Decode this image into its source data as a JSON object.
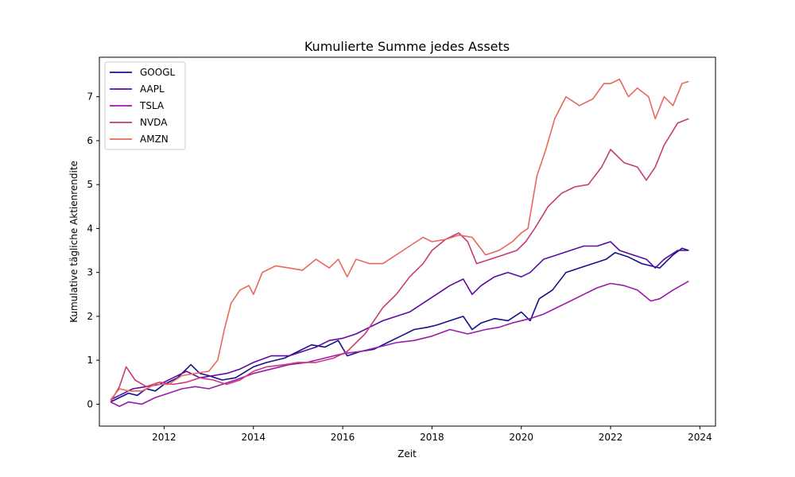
{
  "chart_data": {
    "type": "line",
    "title": "Kumulierte Summe jedes Assets",
    "xlabel": "Zeit",
    "ylabel": "Kumulative tägliche Aktienrendite",
    "xlim": [
      2010.55,
      2024.35
    ],
    "ylim": [
      -0.5,
      7.9
    ],
    "x_ticks": [
      2012,
      2014,
      2016,
      2018,
      2020,
      2022,
      2024
    ],
    "y_ticks": [
      0,
      1,
      2,
      3,
      4,
      5,
      6,
      7
    ],
    "grid": false,
    "legend_position": "upper-left",
    "series": [
      {
        "name": "GOOGL",
        "color": "#16108a",
        "x": [
          2010.8,
          2011.0,
          2011.2,
          2011.4,
          2011.6,
          2011.8,
          2012.0,
          2012.3,
          2012.6,
          2012.8,
          2013.0,
          2013.3,
          2013.6,
          2014.0,
          2014.3,
          2014.7,
          2015.0,
          2015.3,
          2015.6,
          2015.9,
          2016.1,
          2016.4,
          2016.7,
          2017.0,
          2017.3,
          2017.6,
          2017.9,
          2018.1,
          2018.4,
          2018.7,
          2018.9,
          2019.1,
          2019.4,
          2019.7,
          2020.0,
          2020.2,
          2020.4,
          2020.7,
          2021.0,
          2021.3,
          2021.6,
          2021.9,
          2022.1,
          2022.4,
          2022.7,
          2022.9,
          2023.1,
          2023.4,
          2023.6,
          2023.75
        ],
        "values": [
          0.05,
          0.15,
          0.25,
          0.2,
          0.35,
          0.3,
          0.45,
          0.6,
          0.9,
          0.7,
          0.65,
          0.55,
          0.6,
          0.85,
          0.95,
          1.05,
          1.2,
          1.35,
          1.3,
          1.45,
          1.1,
          1.2,
          1.25,
          1.4,
          1.55,
          1.7,
          1.75,
          1.8,
          1.9,
          2.0,
          1.7,
          1.85,
          1.95,
          1.9,
          2.1,
          1.9,
          2.4,
          2.6,
          3.0,
          3.1,
          3.2,
          3.3,
          3.45,
          3.35,
          3.2,
          3.15,
          3.1,
          3.4,
          3.55,
          3.5
        ]
      },
      {
        "name": "AAPL",
        "color": "#5c0aa3",
        "x": [
          2010.8,
          2011.0,
          2011.3,
          2011.6,
          2011.9,
          2012.2,
          2012.5,
          2012.8,
          2013.1,
          2013.4,
          2013.7,
          2014.0,
          2014.4,
          2014.8,
          2015.1,
          2015.4,
          2015.7,
          2016.0,
          2016.3,
          2016.6,
          2016.9,
          2017.2,
          2017.5,
          2017.8,
          2018.1,
          2018.4,
          2018.7,
          2018.9,
          2019.1,
          2019.4,
          2019.7,
          2020.0,
          2020.2,
          2020.5,
          2020.8,
          2021.1,
          2021.4,
          2021.7,
          2022.0,
          2022.2,
          2022.5,
          2022.8,
          2023.0,
          2023.2,
          2023.5,
          2023.75
        ],
        "values": [
          0.1,
          0.2,
          0.35,
          0.4,
          0.45,
          0.6,
          0.75,
          0.6,
          0.65,
          0.7,
          0.8,
          0.95,
          1.1,
          1.1,
          1.2,
          1.3,
          1.45,
          1.5,
          1.6,
          1.75,
          1.9,
          2.0,
          2.1,
          2.3,
          2.5,
          2.7,
          2.85,
          2.5,
          2.7,
          2.9,
          3.0,
          2.9,
          3.0,
          3.3,
          3.4,
          3.5,
          3.6,
          3.6,
          3.7,
          3.5,
          3.4,
          3.3,
          3.1,
          3.3,
          3.5,
          3.5
        ]
      },
      {
        "name": "TSLA",
        "color": "#9c1aab",
        "x": [
          2010.8,
          2011.0,
          2011.2,
          2011.5,
          2011.8,
          2012.1,
          2012.4,
          2012.7,
          2013.0,
          2013.3,
          2013.6,
          2014.0,
          2014.4,
          2014.8,
          2015.2,
          2015.6,
          2016.0,
          2016.4,
          2016.8,
          2017.2,
          2017.6,
          2018.0,
          2018.4,
          2018.8,
          2019.2,
          2019.5,
          2019.8,
          2020.2,
          2020.5,
          2020.8,
          2021.1,
          2021.4,
          2021.7,
          2022.0,
          2022.3,
          2022.6,
          2022.9,
          2023.1,
          2023.4,
          2023.75
        ],
        "values": [
          0.05,
          -0.05,
          0.05,
          0.0,
          0.15,
          0.25,
          0.35,
          0.4,
          0.35,
          0.45,
          0.55,
          0.7,
          0.8,
          0.9,
          0.95,
          1.05,
          1.15,
          1.2,
          1.3,
          1.4,
          1.45,
          1.55,
          1.7,
          1.6,
          1.7,
          1.75,
          1.85,
          1.95,
          2.05,
          2.2,
          2.35,
          2.5,
          2.65,
          2.75,
          2.7,
          2.6,
          2.35,
          2.4,
          2.6,
          2.8
        ]
      },
      {
        "name": "NVDA",
        "color": "#c83a7b",
        "x": [
          2010.8,
          2011.0,
          2011.15,
          2011.35,
          2011.6,
          2011.9,
          2012.2,
          2012.5,
          2012.8,
          2013.1,
          2013.4,
          2013.7,
          2014.0,
          2014.3,
          2014.7,
          2015.0,
          2015.4,
          2015.8,
          2016.1,
          2016.5,
          2016.9,
          2017.2,
          2017.5,
          2017.8,
          2018.0,
          2018.3,
          2018.6,
          2018.8,
          2019.0,
          2019.3,
          2019.6,
          2019.9,
          2020.1,
          2020.3,
          2020.6,
          2020.9,
          2021.2,
          2021.5,
          2021.8,
          2022.0,
          2022.3,
          2022.6,
          2022.8,
          2023.0,
          2023.2,
          2023.5,
          2023.75
        ],
        "values": [
          0.05,
          0.4,
          0.85,
          0.55,
          0.4,
          0.5,
          0.45,
          0.5,
          0.6,
          0.55,
          0.45,
          0.55,
          0.75,
          0.85,
          0.9,
          0.95,
          0.95,
          1.05,
          1.2,
          1.6,
          2.2,
          2.5,
          2.9,
          3.2,
          3.5,
          3.75,
          3.9,
          3.7,
          3.2,
          3.3,
          3.4,
          3.5,
          3.7,
          4.0,
          4.5,
          4.8,
          4.95,
          5.0,
          5.4,
          5.8,
          5.5,
          5.4,
          5.1,
          5.4,
          5.9,
          6.4,
          6.5
        ]
      },
      {
        "name": "AMZN",
        "color": "#e8685b",
        "x": [
          2010.8,
          2011.0,
          2011.2,
          2011.5,
          2011.8,
          2012.1,
          2012.4,
          2012.7,
          2013.0,
          2013.2,
          2013.35,
          2013.5,
          2013.7,
          2013.9,
          2014.0,
          2014.2,
          2014.5,
          2014.8,
          2015.1,
          2015.4,
          2015.7,
          2015.9,
          2016.1,
          2016.3,
          2016.6,
          2016.9,
          2017.2,
          2017.5,
          2017.8,
          2018.0,
          2018.3,
          2018.6,
          2018.9,
          2019.2,
          2019.5,
          2019.8,
          2020.0,
          2020.15,
          2020.35,
          2020.55,
          2020.75,
          2021.0,
          2021.3,
          2021.6,
          2021.85,
          2022.0,
          2022.2,
          2022.4,
          2022.6,
          2022.85,
          2023.0,
          2023.2,
          2023.4,
          2023.6,
          2023.75
        ],
        "values": [
          0.1,
          0.35,
          0.3,
          0.3,
          0.45,
          0.45,
          0.65,
          0.7,
          0.75,
          1.0,
          1.7,
          2.3,
          2.6,
          2.7,
          2.5,
          3.0,
          3.15,
          3.1,
          3.05,
          3.3,
          3.1,
          3.3,
          2.9,
          3.3,
          3.2,
          3.2,
          3.4,
          3.6,
          3.8,
          3.7,
          3.75,
          3.85,
          3.8,
          3.4,
          3.5,
          3.7,
          3.9,
          4.0,
          5.2,
          5.8,
          6.5,
          7.0,
          6.8,
          6.95,
          7.3,
          7.3,
          7.4,
          7.0,
          7.2,
          7.0,
          6.5,
          7.0,
          6.8,
          7.3,
          7.35
        ]
      }
    ]
  }
}
